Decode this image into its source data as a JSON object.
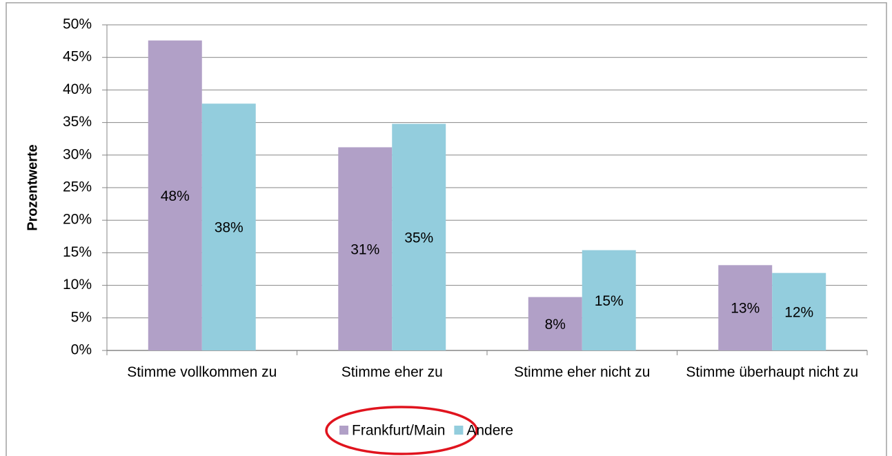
{
  "chart_data": {
    "type": "bar",
    "y_axis_label": "Prozentwerte",
    "categories": [
      "Stimme vollkommen zu",
      "Stimme eher zu",
      "Stimme eher nicht zu",
      "Stimme überhaupt nicht zu"
    ],
    "series": [
      {
        "name": "Frankfurt/Main",
        "color": "#b1a0c7",
        "values": [
          47.6,
          31.2,
          8.2,
          13.1
        ],
        "value_labels": [
          "48%",
          "31%",
          "8%",
          "13%"
        ]
      },
      {
        "name": "Andere",
        "color": "#93cddd",
        "values": [
          37.9,
          34.8,
          15.4,
          11.9
        ],
        "value_labels": [
          "38%",
          "35%",
          "15%",
          "12%"
        ]
      }
    ],
    "ylim": [
      0,
      50
    ],
    "yticks": [
      {
        "value": 0,
        "label": "0%"
      },
      {
        "value": 5,
        "label": "5%"
      },
      {
        "value": 10,
        "label": "10%"
      },
      {
        "value": 15,
        "label": "15%"
      },
      {
        "value": 20,
        "label": "20%"
      },
      {
        "value": 25,
        "label": "25%"
      },
      {
        "value": 30,
        "label": "30%"
      },
      {
        "value": 35,
        "label": "35%"
      },
      {
        "value": 40,
        "label": "40%"
      },
      {
        "value": 45,
        "label": "45%"
      },
      {
        "value": 50,
        "label": "50%"
      }
    ],
    "grid": true,
    "legend": "bottom"
  }
}
